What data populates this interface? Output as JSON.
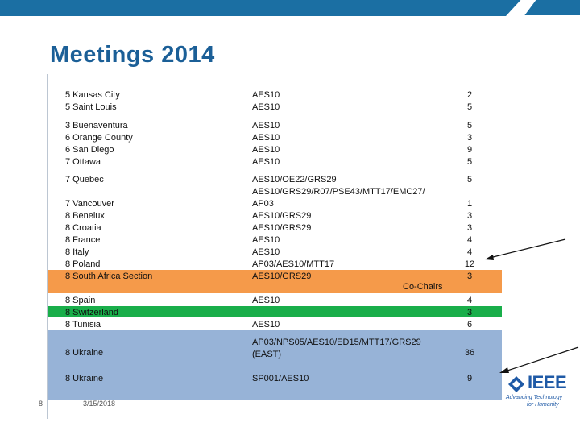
{
  "slide": {
    "title": "Meetings 2014",
    "slide_number": "8",
    "date": "3/15/2018",
    "co_chairs_label": "Co-Chairs"
  },
  "rows": [
    {
      "location": "5 Kansas City\n5 Saint Louis",
      "committees": "AES10\nAES10",
      "count": "2\n5"
    },
    {
      "location": "3 Buenaventura\n6 Orange County\n6 San Diego\n7 Ottawa",
      "committees": "AES10\nAES10\nAES10\nAES10",
      "count": "5\n3\n9\n5"
    },
    {
      "location": "7 Quebec",
      "committees": "AES10/OE22/GRS29\nAES10/GRS29/R07/PSE43/MTT17/EMC27/\nAP03\nAES10/GRS29\nAES10/GRS29\nAES10\nAES10\nAP03/AES10/MTT17\nAES10/GRS29",
      "count": "5"
    },
    {
      "location": "7 Vancouver\n8 Benelux\n8 Croatia\n8 France\n8 Italy\n8 Poland\n8 South Africa Section",
      "committees": "",
      "count": "1\n3\n3\n4\n4\n12\n3"
    },
    {
      "location": "8 Spain\n8 Switzerland\n8 Tunisia",
      "committees": "AES10",
      "count": "4\n3\n6"
    },
    {
      "location": "",
      "committees": "AES10",
      "count": ""
    },
    {
      "location": "8 Ukraine",
      "committees": "AP03/NPS05/AES10/ED15/MTT17/GRS29\n(EAST)",
      "count": "36"
    },
    {
      "location": "8 Ukraine",
      "committees": "SP001/AES10",
      "count": "9"
    }
  ],
  "logo": {
    "name": "IEEE",
    "tagline_1": "Advancing Technology",
    "tagline_2": "for Humanity"
  },
  "colors": {
    "header_bar": "#1b6fa3",
    "title": "#1b5f97",
    "highlight_orange": "#f59a4a",
    "highlight_green": "#19ae4a",
    "highlight_blue": "#97b3d7"
  }
}
